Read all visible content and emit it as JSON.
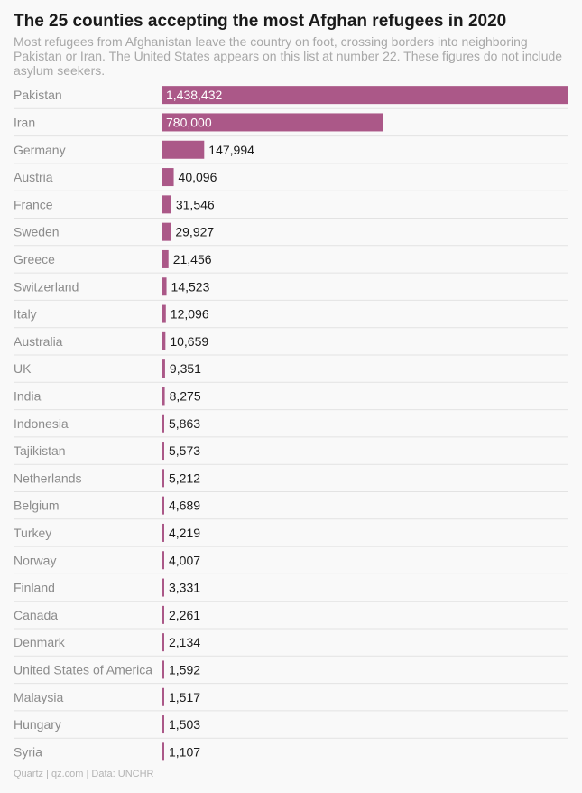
{
  "header": {
    "title": "The 25 counties accepting the most Afghan refugees in 2020",
    "subtitle": "Most refugees from Afghanistan leave the country on foot, crossing borders into neighboring Pakistan or Iran. The United States appears on this list at number 22. These figures do not include asylum seekers."
  },
  "footer": {
    "source": "Quartz | qz.com | Data: UNCHR"
  },
  "chart_data": {
    "type": "bar",
    "orientation": "horizontal",
    "title": "The 25 counties accepting the most Afghan refugees in 2020",
    "categories": [
      "Pakistan",
      "Iran",
      "Germany",
      "Austria",
      "France",
      "Sweden",
      "Greece",
      "Switzerland",
      "Italy",
      "Australia",
      "UK",
      "India",
      "Indonesia",
      "Tajikistan",
      "Netherlands",
      "Belgium",
      "Turkey",
      "Norway",
      "Finland",
      "Canada",
      "Denmark",
      "United States of America",
      "Malaysia",
      "Hungary",
      "Syria"
    ],
    "values": [
      1438432,
      780000,
      147994,
      40096,
      31546,
      29927,
      21456,
      14523,
      12096,
      10659,
      9351,
      8275,
      5863,
      5573,
      5212,
      4689,
      4219,
      4007,
      3331,
      2261,
      2134,
      1592,
      1517,
      1503,
      1107
    ],
    "value_labels": [
      "1,438,432",
      "780,000",
      "147,994",
      "40,096",
      "31,546",
      "29,927",
      "21,456",
      "14,523",
      "12,096",
      "10,659",
      "9,351",
      "8,275",
      "5,863",
      "5,573",
      "5,212",
      "4,689",
      "4,219",
      "4,007",
      "3,331",
      "2,261",
      "2,134",
      "1,592",
      "1,517",
      "1,503",
      "1,107"
    ],
    "xlim": [
      0,
      1438432
    ],
    "grid": false,
    "bar_color": "#ab5888",
    "divider_color": "#e3e3e3"
  }
}
